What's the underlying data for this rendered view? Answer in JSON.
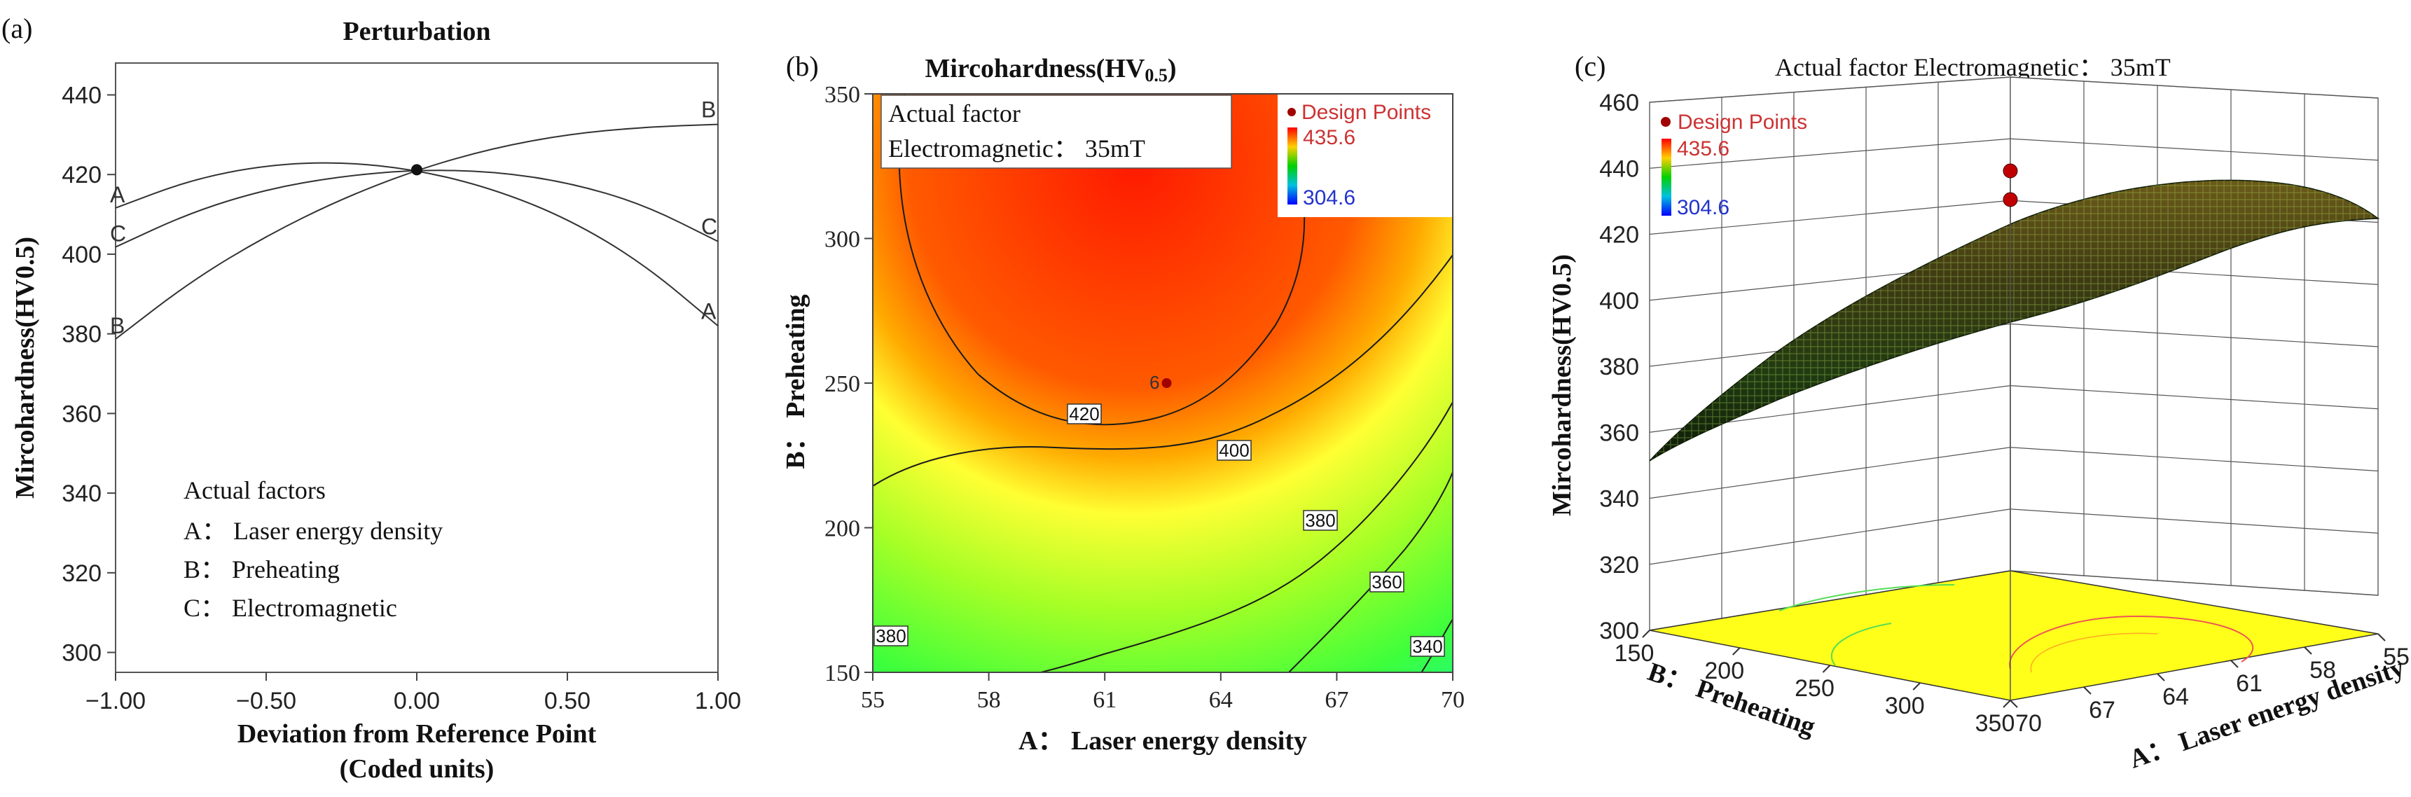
{
  "chart_data": [
    {
      "panel_label": "(a)",
      "type": "line",
      "title": "Perturbation",
      "xlabel_line1": "Deviation from Reference Point",
      "xlabel_line2": "(Coded units)",
      "ylabel": "Mircohardness(HV0.5)",
      "xlim": [
        -1.0,
        1.0
      ],
      "ylim": [
        295,
        448
      ],
      "xticks": [
        "-1.00",
        "-0.50",
        "0.00",
        "0.50",
        "1.00"
      ],
      "xtick_values": [
        -1.0,
        -0.5,
        0.0,
        0.5,
        1.0
      ],
      "yticks": [
        300,
        320,
        340,
        360,
        380,
        400,
        420,
        440
      ],
      "series": [
        {
          "name": "A",
          "x": [
            -1.0,
            -0.75,
            -0.5,
            -0.25,
            0.0,
            0.25,
            0.5,
            0.75,
            1.0
          ],
          "y": [
            411.6,
            418.7,
            422.4,
            423.2,
            421.2,
            416.5,
            409.0,
            397.8,
            382.0
          ]
        },
        {
          "name": "B",
          "x": [
            -1.0,
            -0.75,
            -0.5,
            -0.25,
            0.0,
            0.25,
            0.5,
            0.75,
            1.0
          ],
          "y": [
            378.7,
            393.2,
            404.6,
            413.9,
            421.2,
            426.6,
            430.1,
            431.9,
            432.6
          ]
        },
        {
          "name": "C",
          "x": [
            -1.0,
            -0.75,
            -0.5,
            -0.25,
            0.0,
            0.25,
            0.5,
            0.75,
            1.0
          ],
          "y": [
            401.8,
            410.5,
            416.3,
            419.6,
            421.2,
            420.8,
            418.1,
            412.6,
            403.2
          ]
        }
      ],
      "legend_title": "Actual factors",
      "legend_items": [
        "A： Laser energy density",
        "B： Preheating",
        "C： Electromagnetic"
      ]
    },
    {
      "panel_label": "(b)",
      "type": "contour",
      "title_main": "Mircohardness(HV",
      "title_sub": "0.5",
      "title_end": ")",
      "xlabel": "A： Laser energy density",
      "ylabel": "B： Preheating",
      "xlim": [
        55,
        70
      ],
      "ylim": [
        150,
        350
      ],
      "xticks": [
        55,
        58,
        61,
        64,
        67,
        70
      ],
      "yticks": [
        150,
        200,
        250,
        300,
        350
      ],
      "contour_levels": [
        420,
        400,
        380,
        360,
        340
      ],
      "contour_labels": [
        "420",
        "400",
        "380",
        "360",
        "340",
        "380"
      ],
      "design_point": {
        "x": 62.6,
        "y": 250,
        "label": "6"
      },
      "annotation_line1": "Actual factor",
      "annotation_line2": "Electromagnetic： 35mT",
      "legend_title": "Design Points",
      "colorbar_max": "435.6",
      "colorbar_min": "304.6"
    },
    {
      "panel_label": "(c)",
      "type": "surface3d",
      "title": "Actual factor    Electromagnetic： 35mT",
      "zlabel": "Mircohardness(HV0.5)",
      "xlabel": "A： Laser energy density",
      "ylabel": "B： Preheating",
      "zticks": [
        300,
        320,
        340,
        360,
        380,
        400,
        420,
        440,
        460
      ],
      "xticks": [
        55,
        58,
        61,
        64,
        67,
        70
      ],
      "yticks": [
        150,
        200,
        250,
        300,
        350
      ],
      "legend_title": "Design Points",
      "colorbar_max": "435.6",
      "colorbar_min": "304.6"
    }
  ]
}
